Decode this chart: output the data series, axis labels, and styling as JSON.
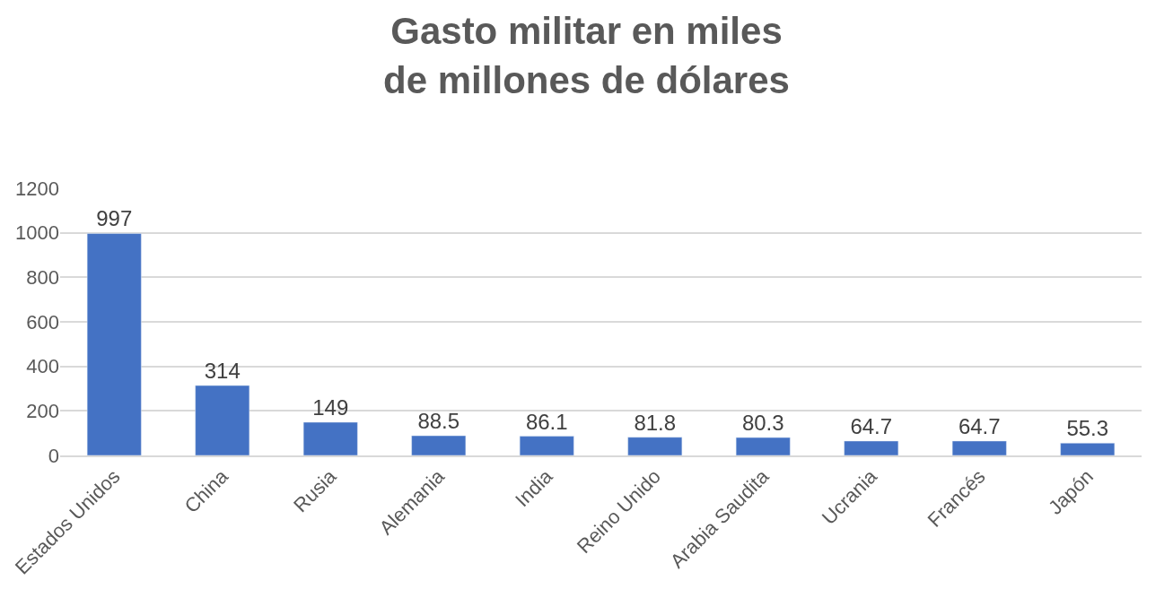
{
  "chart_data": {
    "type": "bar",
    "title": "Gasto militar en miles de millones de dólares",
    "categories": [
      "Estados Unidos",
      "China",
      "Rusia",
      "Alemania",
      "India",
      "Reino Unido",
      "Arabia Saudita",
      "Ucrania",
      "Francés",
      "Japón"
    ],
    "values": [
      997,
      314,
      149,
      88.5,
      86.1,
      81.8,
      80.3,
      64.7,
      64.7,
      55.3
    ],
    "color": "#4472c4",
    "ylim": [
      0,
      1200
    ],
    "yticks": [
      0,
      200,
      400,
      600,
      800,
      1000,
      1200
    ],
    "grid": "y",
    "data_labels": true
  }
}
